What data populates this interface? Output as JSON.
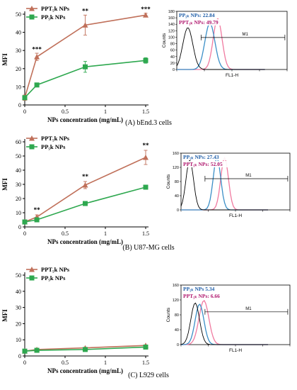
{
  "colors": {
    "ppt": "#c0705a",
    "pp": "#2ea84f",
    "hist_pp": "#3b8fc7",
    "hist_ppt": "#f07aa0",
    "hist_ctrl": "#000000",
    "legend_pp_text": "#1f5ea8",
    "legend_ppt_text": "#b0186e"
  },
  "panels": [
    {
      "caption": "(A) bEnd.3 cells",
      "hist_legend": [
        {
          "label": "PP₅ₖ NPs: 22.84",
          "color_key": "legend_pp_text"
        },
        {
          "label": "PPT₅ₖ NPs: 49.79",
          "color_key": "legend_ppt_text"
        }
      ],
      "hist_gate": "M1",
      "hist_ylabel": "Counts",
      "hist_xlabel": "FL1-H",
      "hist_yticks": [
        "0",
        "20",
        "40",
        "60",
        "80",
        "100",
        "120",
        "140",
        "160",
        "180"
      ]
    },
    {
      "caption": "(B) U87-MG cells",
      "hist_legend": [
        {
          "label": "PP₅ₖ NPs: 27.43",
          "color_key": "legend_pp_text"
        },
        {
          "label": "PPT₅ₖ NPs: 52.05",
          "color_key": "legend_ppt_text"
        }
      ],
      "hist_gate": "M1",
      "hist_ylabel": "Counts",
      "hist_xlabel": "FL1-H",
      "hist_yticks": [
        "0",
        "40",
        "80",
        "120",
        "160"
      ]
    },
    {
      "caption": "(C) L929 cells",
      "hist_legend": [
        {
          "label": "PP₅ₖ NPs 5.34",
          "color_key": "legend_pp_text"
        },
        {
          "label": "PPT₅ₖ NPs: 6.66",
          "color_key": "legend_ppt_text"
        }
      ],
      "hist_gate": "M1",
      "hist_ylabel": "Counts",
      "hist_xlabel": "FL1-H",
      "hist_yticks": [
        "0",
        "40",
        "80",
        "120",
        "160"
      ]
    }
  ],
  "chart_data": [
    {
      "type": "line",
      "panel": "A",
      "xlabel": "NPs concentration (mg/mL)",
      "ylabel": "MFI",
      "xlim": [
        0,
        1.5
      ],
      "ylim": [
        0,
        50
      ],
      "xticks": [
        0,
        0.5,
        1,
        1.5
      ],
      "yticks": [
        0,
        10,
        20,
        30,
        40,
        50
      ],
      "legend_position": "top-left",
      "series": [
        {
          "name": "PPT₅k NPs",
          "marker": "triangle",
          "color_key": "ppt",
          "x": [
            0,
            0.15,
            0.75,
            1.5
          ],
          "y": [
            4,
            26.5,
            44,
            49.5
          ],
          "err": [
            1.5,
            2,
            5.5,
            1
          ]
        },
        {
          "name": "PP₅k NPs",
          "marker": "square",
          "color_key": "pp",
          "x": [
            0,
            0.15,
            0.75,
            1.5
          ],
          "y": [
            4,
            11,
            21,
            24.5
          ],
          "err": [
            1,
            1,
            3,
            1.5
          ]
        }
      ],
      "annotations": [
        {
          "x": 0.15,
          "y": 29.5,
          "text": "***"
        },
        {
          "x": 0.75,
          "y": 50.5,
          "text": "**"
        },
        {
          "x": 1.5,
          "y": 51.5,
          "text": "***"
        }
      ]
    },
    {
      "type": "line",
      "panel": "B",
      "xlabel": "NPs concentration (mg/mL)",
      "ylabel": "MFI",
      "xlim": [
        0,
        1.5
      ],
      "ylim": [
        0,
        60
      ],
      "xticks": [
        0,
        0.5,
        1,
        1.5
      ],
      "yticks": [
        0,
        10,
        20,
        30,
        40,
        50,
        60
      ],
      "legend_position": "top-left",
      "series": [
        {
          "name": "PPT₅k NPs",
          "marker": "triangle",
          "color_key": "ppt",
          "x": [
            0,
            0.15,
            0.75,
            1.5
          ],
          "y": [
            3.5,
            7,
            29.5,
            49
          ],
          "err": [
            1,
            1.5,
            2.5,
            5
          ]
        },
        {
          "name": "PP₅k NPs",
          "marker": "square",
          "color_key": "pp",
          "x": [
            0,
            0.15,
            0.75,
            1.5
          ],
          "y": [
            3.5,
            5,
            16.5,
            28
          ],
          "err": [
            0.5,
            0.5,
            1.5,
            1
          ]
        }
      ],
      "annotations": [
        {
          "x": 0.15,
          "y": 10.5,
          "text": "**"
        },
        {
          "x": 0.75,
          "y": 34,
          "text": "**"
        },
        {
          "x": 1.5,
          "y": 56,
          "text": "**"
        }
      ]
    },
    {
      "type": "line",
      "panel": "C",
      "xlabel": "NPs concentration (mg/mL)",
      "ylabel": "MFI",
      "xlim": [
        0,
        1.5
      ],
      "ylim": [
        0,
        50
      ],
      "xticks": [
        0,
        0.5,
        1,
        1.5
      ],
      "yticks": [
        0,
        10,
        20,
        30,
        40,
        50
      ],
      "legend_position": "top-left",
      "series": [
        {
          "name": "PPT₅k NPs",
          "marker": "triangle",
          "color_key": "ppt",
          "x": [
            0,
            0.15,
            0.75,
            1.5
          ],
          "y": [
            3,
            4,
            5,
            6.5
          ],
          "err": [
            0.3,
            0.3,
            0.3,
            0.3
          ]
        },
        {
          "name": "PP₅k NPs",
          "marker": "square",
          "color_key": "pp",
          "x": [
            0,
            0.15,
            0.75,
            1.5
          ],
          "y": [
            3,
            3.5,
            4,
            5.5
          ],
          "err": [
            0.3,
            0.3,
            0.3,
            0.3
          ]
        }
      ],
      "annotations": []
    }
  ]
}
